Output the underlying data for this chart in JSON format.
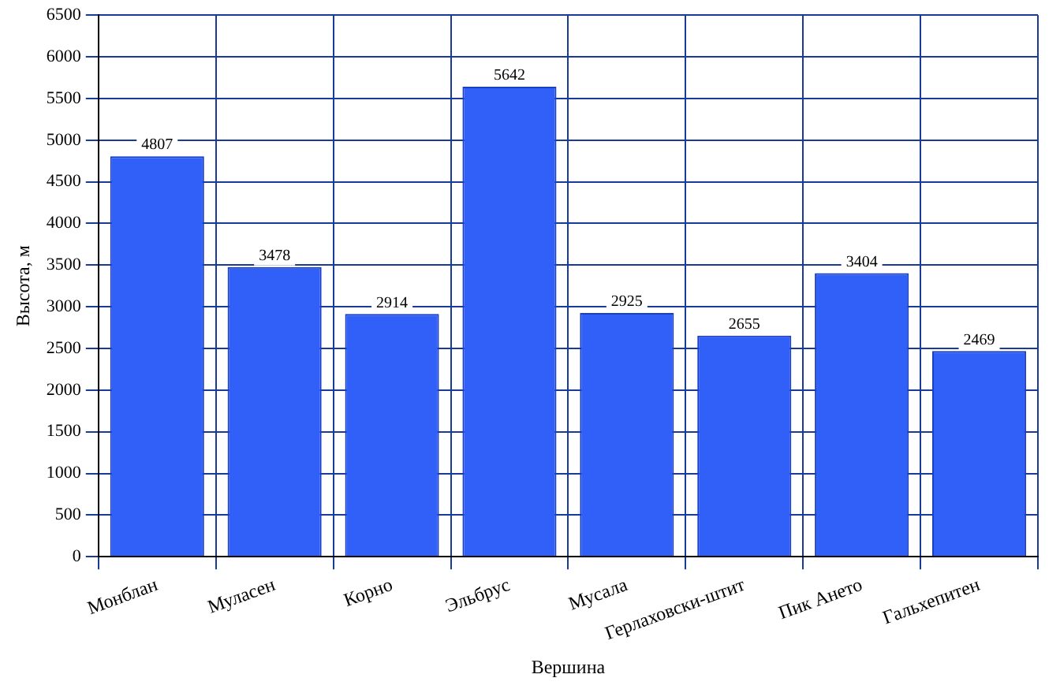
{
  "chart_data": {
    "type": "bar",
    "xlabel": "Вершина",
    "ylabel": "Высота, м",
    "categories": [
      "Монблан",
      "Муласен",
      "Корно",
      "Эльбрус",
      "Мусала",
      "Герлаховски-штит",
      "Пик Ането",
      "Гальхепитен"
    ],
    "values": [
      4807,
      3478,
      2914,
      5642,
      2925,
      2655,
      3404,
      2469
    ],
    "color": "#3060f8",
    "ylim": [
      0,
      6500
    ],
    "yticks": [
      0,
      500,
      1000,
      1500,
      2000,
      2500,
      3000,
      3500,
      4000,
      4500,
      5000,
      5500,
      6000,
      6500
    ],
    "grid": true,
    "data_labels": true
  }
}
